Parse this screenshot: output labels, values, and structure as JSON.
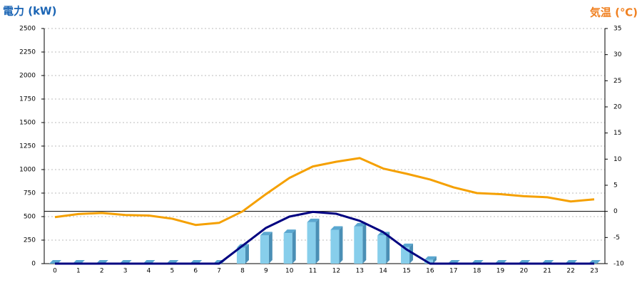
{
  "chart_data": {
    "type": "combo",
    "y_axis_title": "電力 (kW)",
    "y2_axis_title": "気温 (℃)",
    "categories": [
      "0",
      "1",
      "2",
      "3",
      "4",
      "5",
      "6",
      "7",
      "8",
      "9",
      "10",
      "11",
      "12",
      "13",
      "14",
      "15",
      "16",
      "17",
      "18",
      "19",
      "20",
      "21",
      "22",
      "23"
    ],
    "ylim": [
      0,
      2500
    ],
    "yticks": [
      0,
      250,
      500,
      750,
      1000,
      1250,
      1500,
      1750,
      2000,
      2250,
      2500
    ],
    "y2lim": [
      -10,
      35
    ],
    "y2ticks": [
      -10,
      -5,
      0,
      5,
      10,
      15,
      20,
      25,
      30,
      35
    ],
    "y2_reference_line": 0,
    "grid": true,
    "series": [
      {
        "type": "bar",
        "color": "#87ceeb",
        "values": [
          0,
          0,
          0,
          0,
          0,
          0,
          0,
          0,
          170,
          300,
          325,
          440,
          360,
          395,
          300,
          175,
          40,
          0,
          0,
          0,
          0,
          0,
          0,
          0
        ]
      },
      {
        "type": "line",
        "color": "#000080",
        "values": [
          0,
          0,
          0,
          0,
          0,
          0,
          0,
          0,
          190,
          380,
          500,
          550,
          530,
          455,
          335,
          150,
          0,
          0,
          0,
          0,
          0,
          0,
          0,
          0
        ]
      },
      {
        "type": "line",
        "axis": "y2",
        "color": "#f5a000",
        "values": [
          -1.1,
          -0.5,
          -0.3,
          -0.7,
          -0.8,
          -1.4,
          -2.6,
          -2.2,
          0,
          3.3,
          6.4,
          8.6,
          9.5,
          10.2,
          8.2,
          7.2,
          6.1,
          4.6,
          3.5,
          3.3,
          2.9,
          2.7,
          1.9,
          2.3
        ]
      }
    ]
  }
}
